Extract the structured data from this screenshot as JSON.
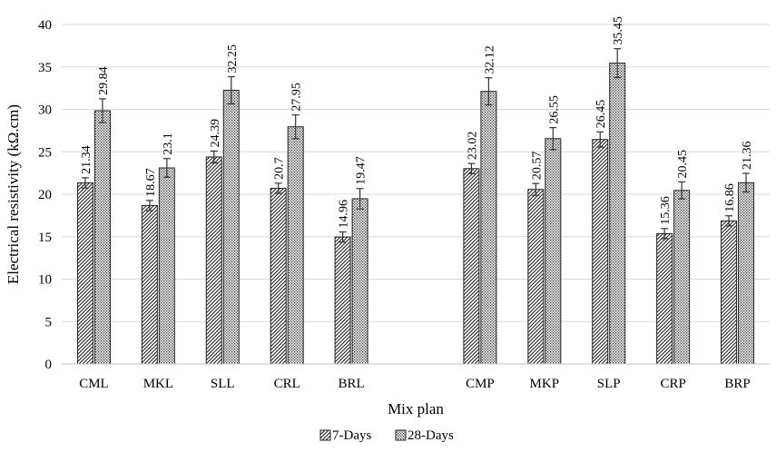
{
  "chart_data": {
    "type": "bar",
    "xlabel": "Mix plan",
    "ylabel": "Electrical resistivity (kΩ.cm)",
    "ylim": [
      0,
      40
    ],
    "ytick_step": 5,
    "grid": true,
    "legend_position": "bottom",
    "categories": [
      "CML",
      "MKL",
      "SLL",
      "CRL",
      "BRL",
      "",
      "CMP",
      "MKP",
      "SLP",
      "CRP",
      "BRP"
    ],
    "series": [
      {
        "name": "7-Days",
        "pattern": "diagonal-hatch",
        "values": [
          21.34,
          18.67,
          24.39,
          20.7,
          14.96,
          null,
          23.02,
          20.57,
          26.45,
          15.36,
          16.86
        ],
        "labels": [
          "21.34",
          "18.67",
          "24.39",
          "20.7",
          "14.96",
          "",
          "23.02",
          "20.57",
          "26.45",
          "15.36",
          "16.86"
        ],
        "errors": [
          0.6,
          0.6,
          0.7,
          0.6,
          0.6,
          null,
          0.6,
          0.7,
          0.9,
          0.6,
          0.6
        ]
      },
      {
        "name": "28-Days",
        "pattern": "dotted",
        "values": [
          29.84,
          23.1,
          32.25,
          27.95,
          19.47,
          null,
          32.12,
          26.55,
          35.45,
          20.45,
          21.36
        ],
        "labels": [
          "29.84",
          "23.1",
          "32.25",
          "27.95",
          "19.47",
          "",
          "32.12",
          "26.55",
          "35.45",
          "20.45",
          "21.36"
        ],
        "errors": [
          1.4,
          1.1,
          1.6,
          1.4,
          1.2,
          null,
          1.6,
          1.3,
          1.7,
          1.0,
          1.1
        ]
      }
    ]
  }
}
